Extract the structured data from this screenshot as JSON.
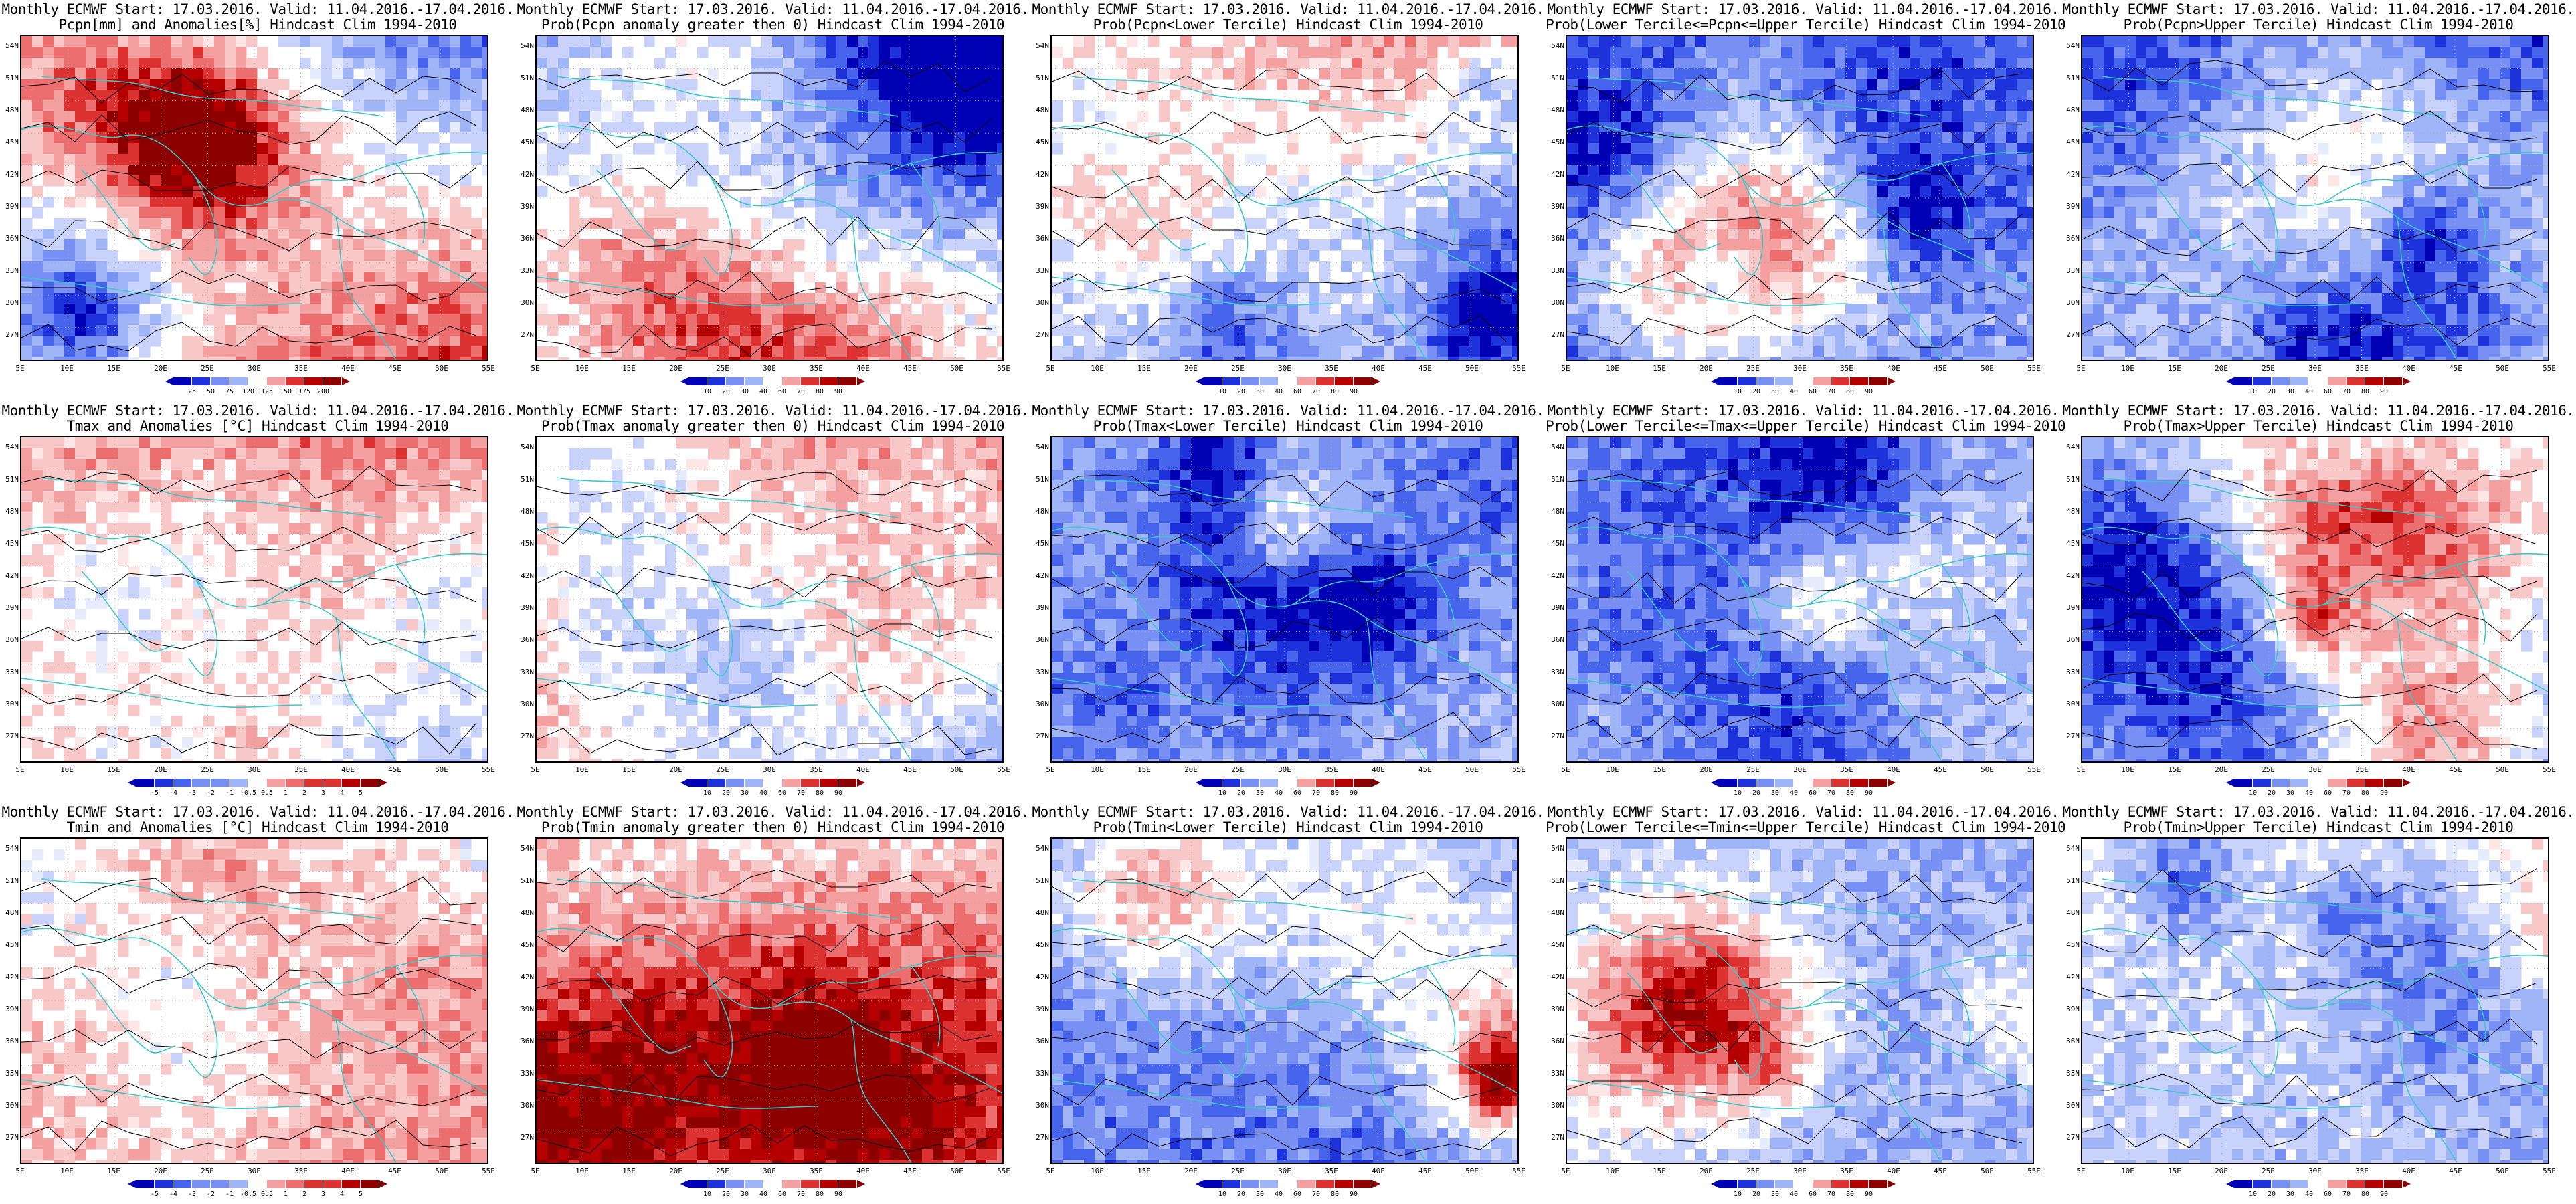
{
  "title_line1": "Monthly ECMWF Start: 17.03.2016. Valid: 11.04.2016.-17.04.2016.",
  "lat_ticks": [
    "54N",
    "51N",
    "48N",
    "45N",
    "42N",
    "39N",
    "36N",
    "33N",
    "30N",
    "27N"
  ],
  "lon_ticks": [
    "5E",
    "10E",
    "15E",
    "20E",
    "25E",
    "30E",
    "35E",
    "40E",
    "45E",
    "50E",
    "55E"
  ],
  "colors": {
    "blue_scale": [
      "#0000b4",
      "#1e32dc",
      "#4664ec",
      "#7890f4",
      "#a0b4f8",
      "#c8d2fa",
      "#e6ecfc"
    ],
    "red_scale": [
      "#fce6e6",
      "#f8c8c8",
      "#f4a0a0",
      "#ec6e6e",
      "#dc3232",
      "#b40000",
      "#8c0000"
    ],
    "coast": "#3cc8c8",
    "contour": "#000000"
  },
  "colorbars": {
    "precip_anom": [
      "25",
      "50",
      "75",
      "120",
      "125",
      "150",
      "175",
      "200"
    ],
    "temp_anom": [
      "-5",
      "-4",
      "-3",
      "-2",
      "-1",
      "-0.5",
      "0.5",
      "1",
      "2",
      "3",
      "4",
      "5"
    ],
    "prob": [
      "10",
      "20",
      "30",
      "40",
      "60",
      "70",
      "80",
      "90"
    ]
  },
  "panels": [
    {
      "title": "Pcpn[mm] and Anomalies[%] Hindcast Clim 1994-2010",
      "cbar": "precip_anom",
      "bias": 0.05,
      "trend": 1.0,
      "dark": 0.6
    },
    {
      "title": "Prob(Pcpn anomaly greater then 0) Hindcast Clim 1994-2010",
      "cbar": "prob",
      "bias": -0.35,
      "trend": 0.6,
      "dark": 0.7
    },
    {
      "title": "Prob(Pcpn<Lower Tercile) Hindcast Clim 1994-2010",
      "cbar": "prob",
      "bias": -0.1,
      "trend": -0.9,
      "dark": 0.6
    },
    {
      "title": "Prob(Lower Tercile<=Pcpn<=Upper Tercile) Hindcast Clim 1994-2010",
      "cbar": "prob",
      "bias": -0.7,
      "trend": 0.0,
      "dark": 0.9
    },
    {
      "title": "Prob(Pcpn>Upper Tercile) Hindcast Clim 1994-2010",
      "cbar": "prob",
      "bias": -0.4,
      "trend": 0.5,
      "dark": 0.7
    },
    {
      "title": "Tmax and Anomalies [°C] Hindcast Clim 1994-2010",
      "cbar": "temp_anom",
      "bias": 0.15,
      "trend": -0.6,
      "dark": 0.3
    },
    {
      "title": "Prob(Tmax anomaly greater then 0) Hindcast Clim 1994-2010",
      "cbar": "prob",
      "bias": 0.1,
      "trend": -0.6,
      "dark": 0.4
    },
    {
      "title": "Prob(Tmax<Lower Tercile) Hindcast Clim 1994-2010",
      "cbar": "prob",
      "bias": -0.45,
      "trend": 0.2,
      "dark": 0.6
    },
    {
      "title": "Prob(Lower Tercile<=Tmax<=Upper Tercile) Hindcast Clim 1994-2010",
      "cbar": "prob",
      "bias": -0.3,
      "trend": 0.0,
      "dark": 0.5
    },
    {
      "title": "Prob(Tmax>Upper Tercile) Hindcast Clim 1994-2010",
      "cbar": "prob",
      "bias": -0.3,
      "trend": -0.5,
      "dark": 0.8
    },
    {
      "title": "Tmin and Anomalies [°C] Hindcast Clim 1994-2010",
      "cbar": "temp_anom",
      "bias": 0.2,
      "trend": 0.3,
      "dark": 0.3
    },
    {
      "title": "Prob(Tmin anomaly greater then 0) Hindcast Clim 1994-2010",
      "cbar": "prob",
      "bias": 0.25,
      "trend": 0.3,
      "dark": 0.4
    },
    {
      "title": "Prob(Tmin<Lower Tercile) Hindcast Clim 1994-2010",
      "cbar": "prob",
      "bias": -0.5,
      "trend": -0.2,
      "dark": 0.7
    },
    {
      "title": "Prob(Lower Tercile<=Tmin<=Upper Tercile) Hindcast Clim 1994-2010",
      "cbar": "prob",
      "bias": -0.35,
      "trend": 0.0,
      "dark": 0.5
    },
    {
      "title": "Prob(Tmin>Upper Tercile) Hindcast Clim 1994-2010",
      "cbar": "prob",
      "bias": -0.2,
      "trend": -0.3,
      "dark": 0.5
    }
  ]
}
